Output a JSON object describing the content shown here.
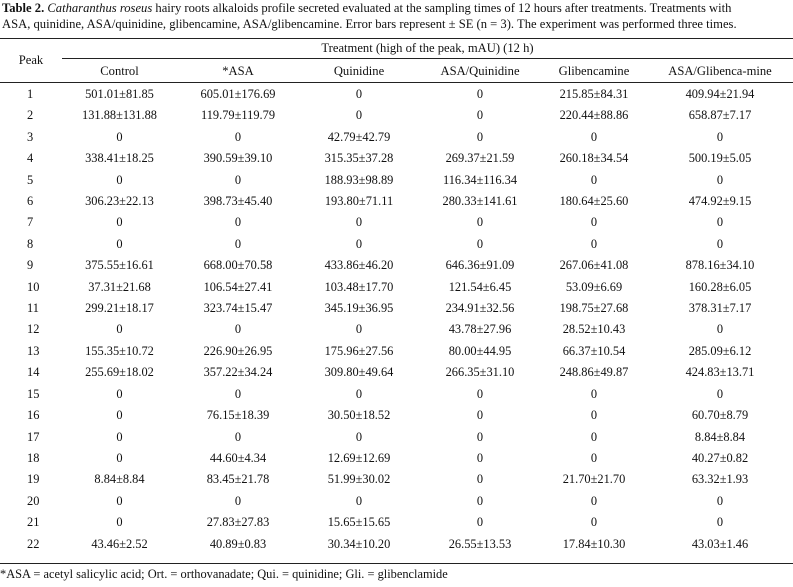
{
  "caption": {
    "label": "Table 2.",
    "species": "Catharanthus roseus",
    "text_line1": " hairy roots alkaloids profile secreted evaluated at the sampling times of 12 hours after treatments. Treatments with",
    "text_line2": "ASA, quinidine, ASA/quinidine, glibencamine, ASA/glibencamine. Error bars represent ± SE (n = 3). The experiment was performed three times."
  },
  "header": {
    "peak": "Peak",
    "treatment_group": "Treatment (high of the peak, mAU) (12 h)",
    "columns": [
      "Control",
      "*ASA",
      "Quinidine",
      "ASA/Quinidine",
      "Glibencamine",
      "ASA/Glibenca-mine"
    ]
  },
  "rows": [
    {
      "peak": "1",
      "values": [
        "501.01±81.85",
        "605.01±176.69",
        "0",
        "0",
        "215.85±84.31",
        "409.94±21.94"
      ]
    },
    {
      "peak": "2",
      "values": [
        "131.88±131.88",
        "119.79±119.79",
        "0",
        "0",
        "220.44±88.86",
        "658.87±7.17"
      ]
    },
    {
      "peak": "3",
      "values": [
        "0",
        "0",
        "42.79±42.79",
        "0",
        "0",
        "0"
      ]
    },
    {
      "peak": "4",
      "values": [
        "338.41±18.25",
        "390.59±39.10",
        "315.35±37.28",
        "269.37±21.59",
        "260.18±34.54",
        "500.19±5.05"
      ]
    },
    {
      "peak": "5",
      "values": [
        "0",
        "0",
        "188.93±98.89",
        "116.34±116.34",
        "0",
        "0"
      ]
    },
    {
      "peak": "6",
      "values": [
        "306.23±22.13",
        "398.73±45.40",
        "193.80±71.11",
        "280.33±141.61",
        "180.64±25.60",
        "474.92±9.15"
      ]
    },
    {
      "peak": "7",
      "values": [
        "0",
        "0",
        "0",
        "0",
        "0",
        "0"
      ]
    },
    {
      "peak": "8",
      "values": [
        "0",
        "0",
        "0",
        "0",
        "0",
        "0"
      ]
    },
    {
      "peak": "9",
      "values": [
        "375.55±16.61",
        "668.00±70.58",
        "433.86±46.20",
        "646.36±91.09",
        "267.06±41.08",
        "878.16±34.10"
      ]
    },
    {
      "peak": "10",
      "values": [
        "37.31±21.68",
        "106.54±27.41",
        "103.48±17.70",
        "121.54±6.45",
        "53.09±6.69",
        "160.28±6.05"
      ]
    },
    {
      "peak": "11",
      "values": [
        "299.21±18.17",
        "323.74±15.47",
        "345.19±36.95",
        "234.91±32.56",
        "198.75±27.68",
        "378.31±7.17"
      ]
    },
    {
      "peak": "12",
      "values": [
        "0",
        "0",
        "0",
        "43.78±27.96",
        "28.52±10.43",
        "0"
      ]
    },
    {
      "peak": "13",
      "values": [
        "155.35±10.72",
        "226.90±26.95",
        "175.96±27.56",
        "80.00±44.95",
        "66.37±10.54",
        "285.09±6.12"
      ]
    },
    {
      "peak": "14",
      "values": [
        "255.69±18.02",
        "357.22±34.24",
        "309.80±49.64",
        "266.35±31.10",
        "248.86±49.87",
        "424.83±13.71"
      ]
    },
    {
      "peak": "15",
      "values": [
        "0",
        "0",
        "0",
        "0",
        "0",
        "0"
      ]
    },
    {
      "peak": "16",
      "values": [
        "0",
        "76.15±18.39",
        "30.50±18.52",
        "0",
        "0",
        "60.70±8.79"
      ]
    },
    {
      "peak": "17",
      "values": [
        "0",
        "0",
        "0",
        "0",
        "0",
        "8.84±8.84"
      ]
    },
    {
      "peak": "18",
      "values": [
        "0",
        "44.60±4.34",
        "12.69±12.69",
        "0",
        "0",
        "40.27±0.82"
      ]
    },
    {
      "peak": "19",
      "values": [
        "8.84±8.84",
        "83.45±21.78",
        "51.99±30.02",
        "0",
        "21.70±21.70",
        "63.32±1.93"
      ]
    },
    {
      "peak": "20",
      "values": [
        "0",
        "0",
        "0",
        "0",
        "0",
        "0"
      ]
    },
    {
      "peak": "21",
      "values": [
        "0",
        "27.83±27.83",
        "15.65±15.65",
        "0",
        "0",
        "0"
      ]
    },
    {
      "peak": "22",
      "values": [
        "43.46±2.52",
        "40.89±0.83",
        "30.34±10.20",
        "26.55±13.53",
        "17.84±10.30",
        "43.03±1.46"
      ]
    }
  ],
  "footnote": "*ASA = acetyl salicylic acid; Ort. = orthovanadate; Qui. = quinidine; Gli. = glibenclamide"
}
